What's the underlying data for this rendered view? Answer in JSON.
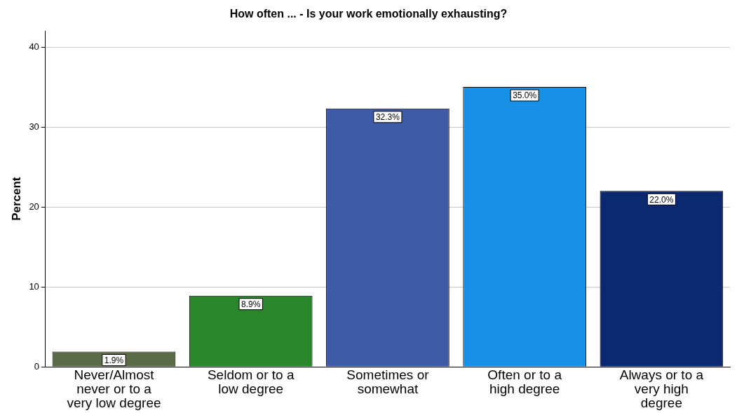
{
  "chart_data": {
    "type": "bar",
    "title": "How often ... - Is your work emotionally exhausting?",
    "ylabel": "Percent",
    "categories": [
      "Never/Almost never or to a very low degree",
      "Seldom or to a low degree",
      "Sometimes or somewhat",
      "Often or to a high degree",
      "Always or to a very high degree"
    ],
    "values": [
      1.9,
      8.9,
      32.3,
      35.0,
      22.0
    ],
    "colors": [
      "#5b6b47",
      "#2a862a",
      "#3f5aa6",
      "#1691e6",
      "#0b2870"
    ],
    "value_labels": [
      "1.9%",
      "8.9%",
      "32.3%",
      "35.0%",
      "22.0%"
    ],
    "ylim": [
      0,
      42
    ],
    "yticks": [
      0,
      10,
      20,
      30,
      40
    ],
    "grid": "y",
    "legend": false
  }
}
